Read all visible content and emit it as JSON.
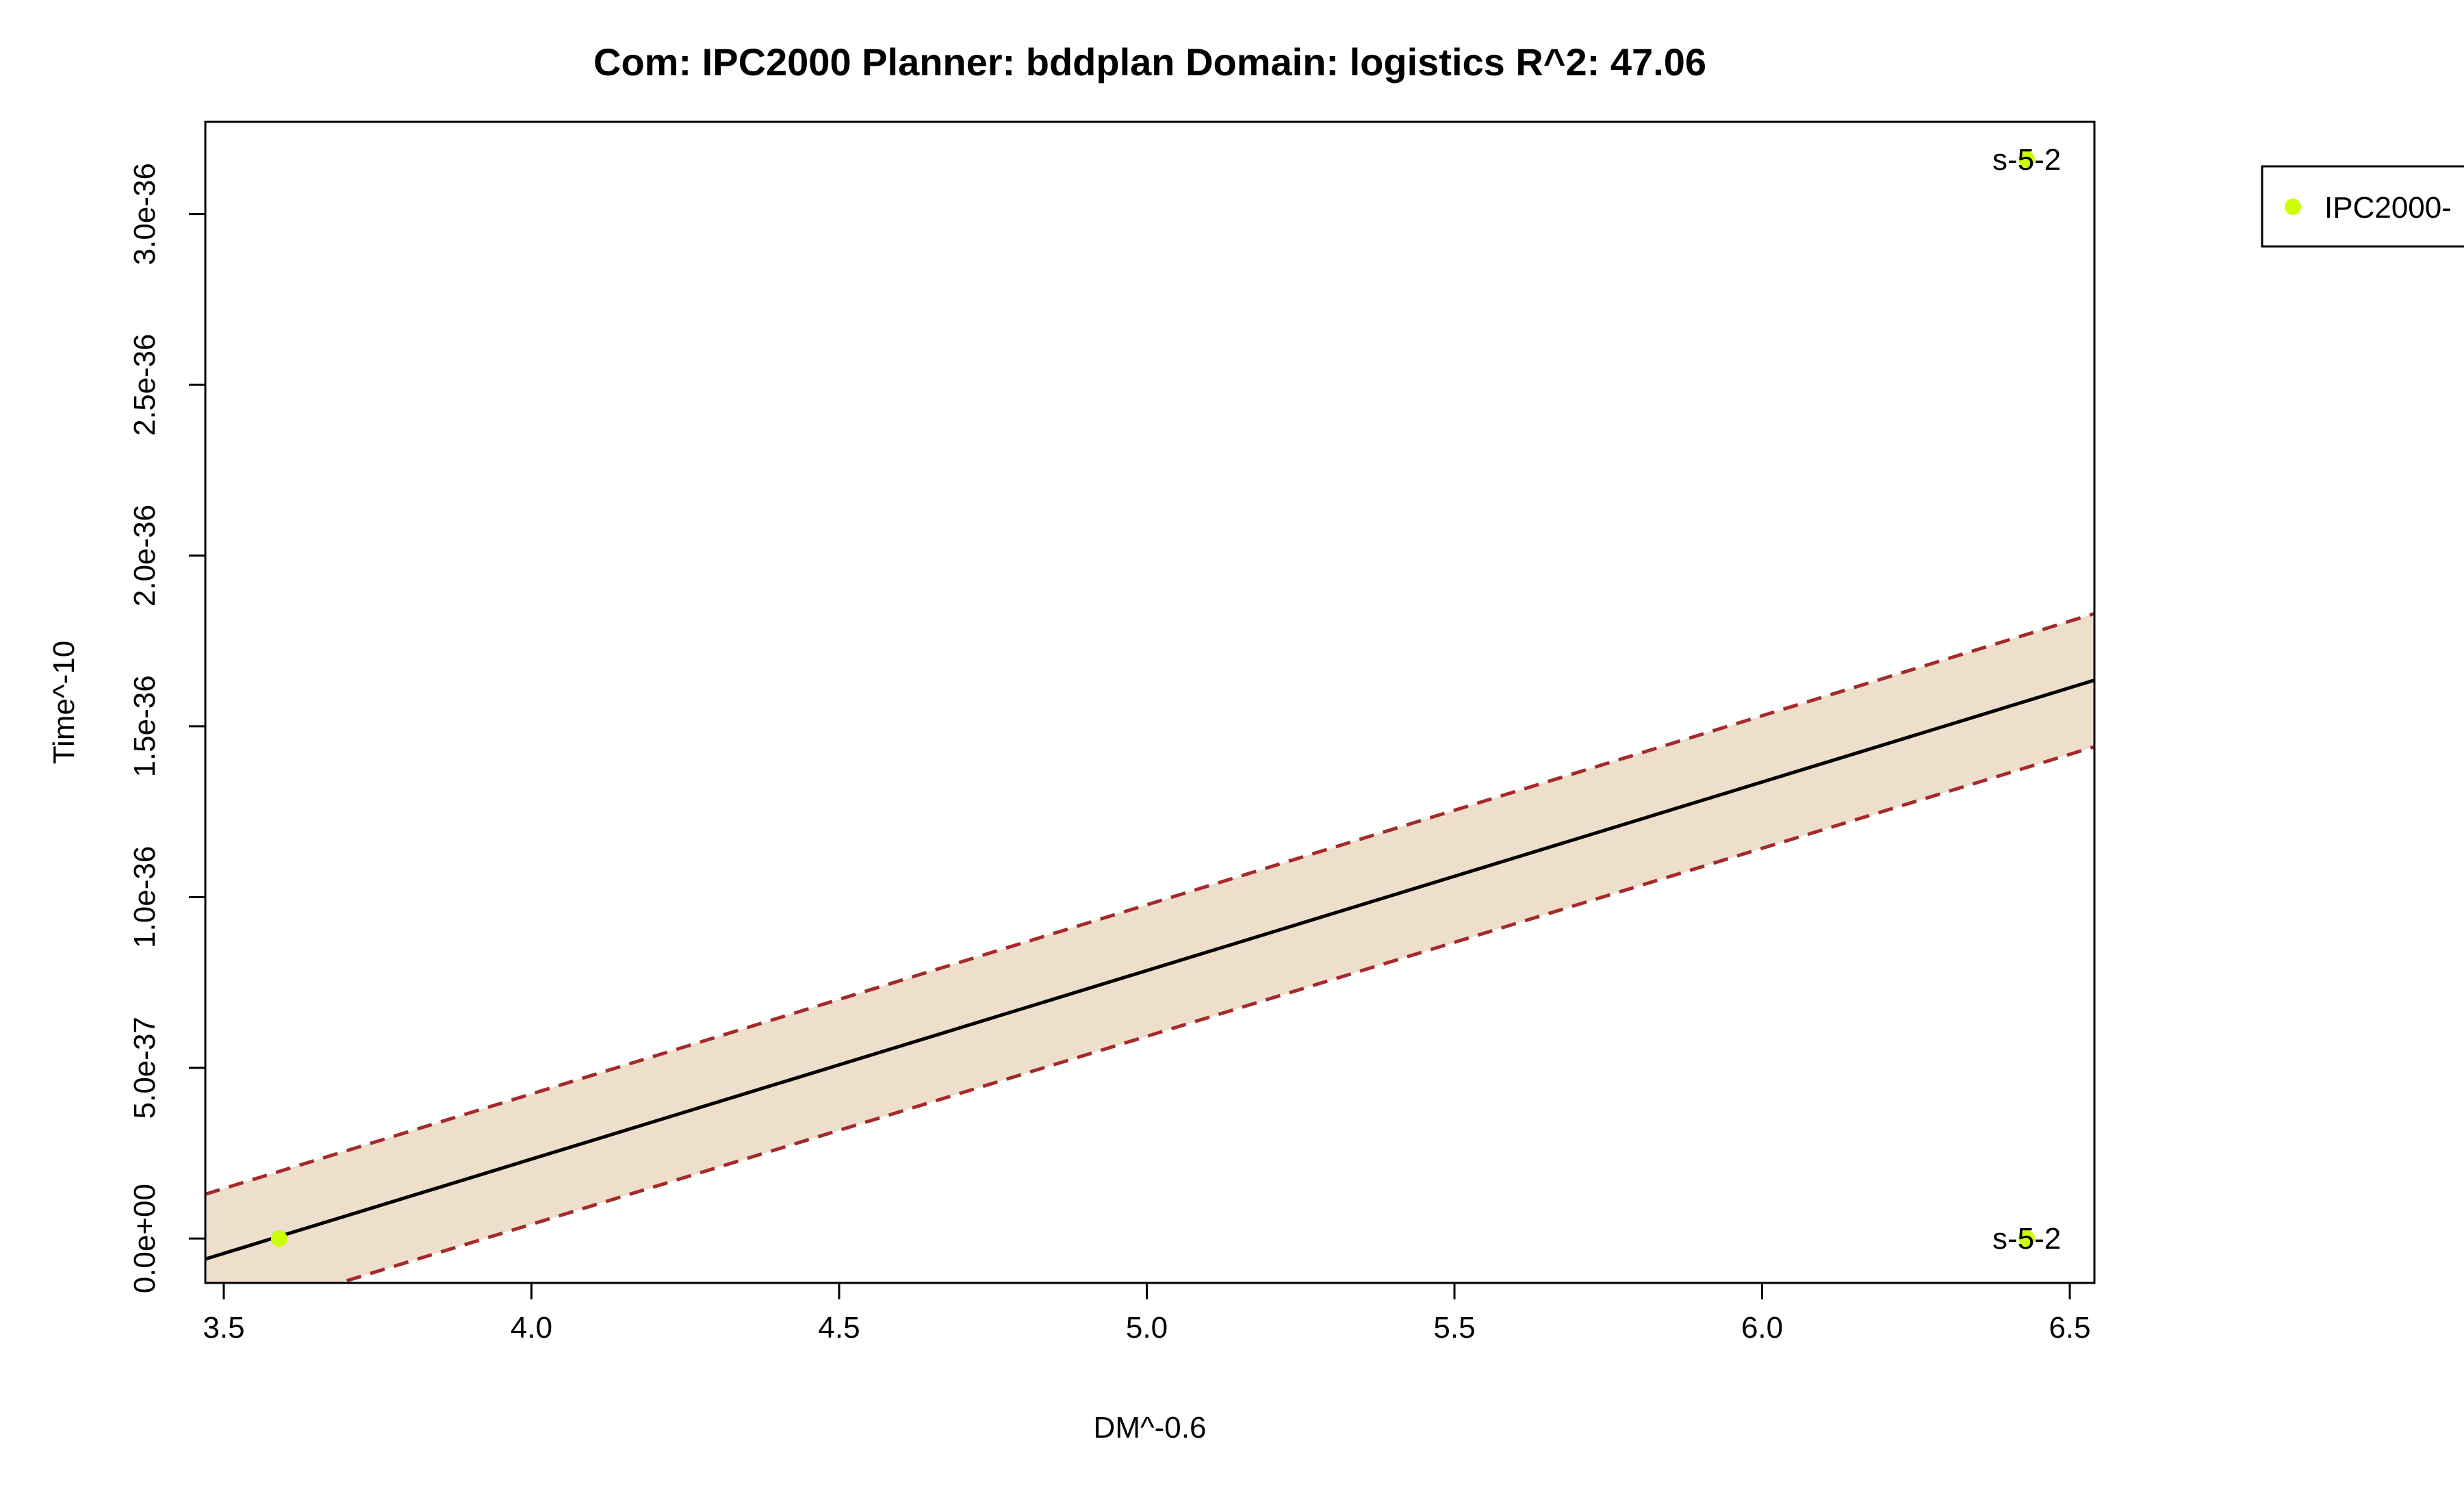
{
  "chart_data": {
    "type": "scatter",
    "title": "Com: IPC2000 Planner: bddplan Domain: logistics R^2: 47.06",
    "xlabel": "DM^-0.6",
    "ylabel": "Time^-10",
    "xlim": [
      3.47,
      6.54
    ],
    "ylim": [
      -1.3e-37,
      3.27e-36
    ],
    "x_ticks": [
      3.5,
      4.0,
      4.5,
      5.0,
      5.5,
      6.0,
      6.5
    ],
    "x_tick_labels": [
      "3.5",
      "4.0",
      "4.5",
      "5.0",
      "5.5",
      "6.0",
      "6.5"
    ],
    "y_ticks": [
      0,
      5e-37,
      1e-36,
      1.5e-36,
      2e-36,
      2.5e-36,
      3e-36
    ],
    "y_tick_labels": [
      "0.0e+00",
      "5.0e-37",
      "1.0e-36",
      "1.5e-36",
      "2.0e-36",
      "2.5e-36",
      "3.0e-36"
    ],
    "grid": false,
    "legend_position": "top-right, outside plot",
    "series": [
      {
        "name": "IPC2000-",
        "color": "#ccff00",
        "points": [
          {
            "x": 3.59,
            "y": 0.0,
            "label": ""
          },
          {
            "x": 6.43,
            "y": 3.16e-36,
            "label": "s-5-2"
          },
          {
            "x": 6.43,
            "y": 0.0,
            "label": "s-5-2"
          }
        ]
      }
    ],
    "fit_line": {
      "color": "#000000",
      "x": [
        3.47,
        6.54
      ],
      "y": [
        -6e-38,
        1.635e-36
      ]
    },
    "confidence_band": {
      "fill_color": "#eedfcc",
      "line_color": "#a52a2a",
      "x": [
        3.47,
        6.54
      ],
      "upper": [
        1.3e-37,
        1.83e-36
      ],
      "lower": [
        -2.5e-37,
        1.44e-36
      ]
    }
  }
}
